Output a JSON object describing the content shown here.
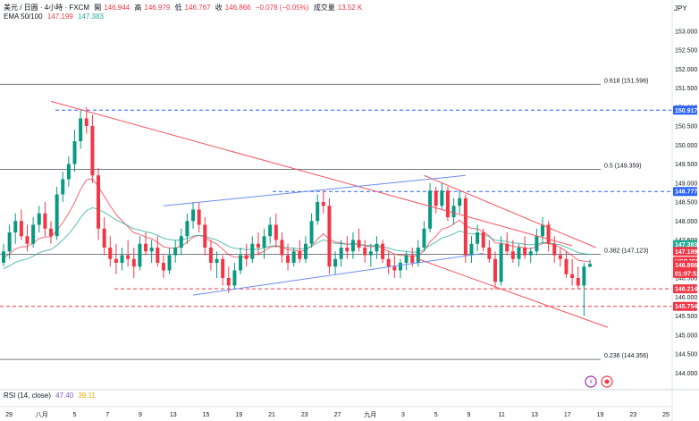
{
  "header": {
    "symbol": "美元 / 日圓 · 4小時 · FXCM",
    "open_label": "開",
    "open": "146.944",
    "high_label": "高",
    "high": "146.979",
    "low_label": "低",
    "low": "146.767",
    "close_label": "收",
    "close": "146.866",
    "change": "−0.078 (−0.05%)",
    "volume_label": "成交量",
    "volume": "13.52 K",
    "ema_label": "EMA 50/100",
    "ema50": "147.199",
    "ema100": "147.383"
  },
  "currency": "JPY",
  "rsi": {
    "label": "RSI (14, close)",
    "v1": "47.40",
    "v2": "39.11"
  },
  "colors": {
    "up": "#089981",
    "down": "#f23645",
    "blue_line": "#2962ff",
    "channel_blue": "#6c8cf0",
    "channel_red": "#f7525f",
    "ema50": "#f23645",
    "ema100": "#22ab94"
  },
  "price_tags": [
    {
      "text": "150.917",
      "price": 150.917,
      "bg": "#2962ff"
    },
    {
      "text": "148.777",
      "price": 148.777,
      "bg": "#2962ff"
    },
    {
      "text": "147.383",
      "price": 147.383,
      "bg": "#22ab94"
    },
    {
      "text": "147.199",
      "price": 147.199,
      "bg": "#f23645"
    },
    {
      "text": "USDJPY",
      "price": 146.94,
      "bg": "#f23645"
    },
    {
      "text": "146.866",
      "price": 146.84,
      "bg": "#f23645"
    },
    {
      "text": "01:07:52",
      "price": 146.62,
      "bg": "#f23645"
    },
    {
      "text": "146.214",
      "price": 146.214,
      "bg": "#f23645"
    },
    {
      "text": "145.754",
      "price": 145.754,
      "bg": "#f23645"
    }
  ],
  "chart_data": {
    "type": "candlestick",
    "title": "",
    "y_ticks": [
      153.0,
      152.5,
      152.0,
      151.5,
      151.0,
      150.5,
      150.0,
      149.5,
      149.0,
      148.5,
      148.0,
      147.5,
      147.0,
      146.5,
      146.0,
      145.5,
      145.0,
      144.5,
      144.0
    ],
    "y_tick_labels": [
      "153.000",
      "152.500",
      "152.000",
      "151.500",
      "151.000",
      "150.500",
      "150.000",
      "149.500",
      "149.000",
      "148.500",
      "148.000",
      "147.500",
      "147.000",
      "146.500",
      "146.000",
      "145.500",
      "145.000",
      "144.500",
      "144.000"
    ],
    "ylim": [
      143.7,
      153.3
    ],
    "x_ticks": [
      "29",
      "八月",
      "5",
      "7",
      "9",
      "13",
      "15",
      "19",
      "21",
      "23",
      "27",
      "九月",
      "3",
      "5",
      "9",
      "11",
      "13",
      "17",
      "19",
      "23",
      "25"
    ],
    "fib_levels": [
      {
        "label": "0.618 (151.596)",
        "price": 151.596
      },
      {
        "label": "0.5 (149.359)",
        "price": 149.359
      },
      {
        "label": "0.382 (147.123)",
        "price": 147.123
      },
      {
        "label": "0.236 (144.356)",
        "price": 144.356
      }
    ],
    "horizontal_dashed": [
      150.917,
      148.777,
      146.214,
      145.754
    ],
    "candles_ohlc": [
      [
        146.9,
        147.4,
        146.8,
        147.2
      ],
      [
        147.2,
        147.9,
        147.0,
        147.7
      ],
      [
        147.7,
        148.2,
        147.4,
        148.0
      ],
      [
        148.0,
        148.3,
        147.5,
        147.6
      ],
      [
        147.6,
        147.9,
        147.2,
        147.4
      ],
      [
        147.4,
        148.1,
        147.3,
        147.9
      ],
      [
        147.9,
        148.4,
        147.7,
        148.2
      ],
      [
        148.2,
        148.5,
        147.6,
        147.8
      ],
      [
        147.8,
        148.0,
        147.4,
        147.6
      ],
      [
        147.6,
        148.9,
        147.5,
        148.7
      ],
      [
        148.7,
        149.3,
        148.5,
        149.1
      ],
      [
        149.1,
        149.7,
        148.9,
        149.5
      ],
      [
        149.5,
        150.4,
        149.3,
        150.1
      ],
      [
        150.1,
        150.9,
        149.9,
        150.7
      ],
      [
        150.7,
        151.0,
        150.3,
        150.5
      ],
      [
        150.5,
        150.8,
        149.0,
        149.2
      ],
      [
        149.2,
        149.4,
        147.5,
        147.8
      ],
      [
        147.8,
        148.1,
        147.1,
        147.3
      ],
      [
        147.3,
        147.6,
        146.8,
        147.0
      ],
      [
        147.0,
        147.4,
        146.6,
        146.9
      ],
      [
        146.9,
        147.3,
        146.7,
        147.1
      ],
      [
        147.1,
        147.5,
        146.8,
        147.0
      ],
      [
        147.0,
        147.3,
        146.5,
        146.8
      ],
      [
        146.8,
        147.6,
        146.7,
        147.4
      ],
      [
        147.4,
        147.7,
        147.1,
        147.2
      ],
      [
        147.2,
        147.5,
        146.9,
        147.3
      ],
      [
        147.3,
        147.6,
        146.8,
        146.9
      ],
      [
        146.9,
        147.1,
        146.5,
        146.7
      ],
      [
        146.7,
        147.3,
        146.6,
        147.1
      ],
      [
        147.1,
        147.5,
        146.9,
        147.3
      ],
      [
        147.3,
        147.8,
        147.1,
        147.6
      ],
      [
        147.6,
        148.2,
        147.4,
        148.0
      ],
      [
        148.0,
        148.5,
        147.8,
        148.3
      ],
      [
        148.3,
        148.5,
        147.7,
        147.9
      ],
      [
        147.9,
        148.1,
        147.1,
        147.3
      ],
      [
        147.3,
        147.5,
        146.7,
        146.9
      ],
      [
        146.9,
        147.2,
        146.5,
        147.0
      ],
      [
        147.0,
        147.1,
        146.3,
        146.5
      ],
      [
        146.5,
        146.8,
        146.1,
        146.3
      ],
      [
        146.3,
        146.9,
        146.2,
        146.7
      ],
      [
        146.7,
        147.3,
        146.6,
        147.1
      ],
      [
        147.1,
        147.4,
        146.8,
        147.0
      ],
      [
        147.0,
        147.6,
        146.9,
        147.4
      ],
      [
        147.4,
        147.7,
        147.1,
        147.3
      ],
      [
        147.3,
        147.8,
        147.0,
        147.6
      ],
      [
        147.6,
        148.1,
        147.4,
        147.9
      ],
      [
        147.9,
        148.2,
        147.3,
        147.5
      ],
      [
        147.5,
        147.7,
        146.9,
        147.1
      ],
      [
        147.1,
        147.4,
        146.7,
        146.9
      ],
      [
        146.9,
        147.3,
        146.8,
        147.2
      ],
      [
        147.2,
        147.5,
        146.9,
        147.0
      ],
      [
        147.0,
        147.6,
        146.9,
        147.4
      ],
      [
        147.4,
        148.2,
        147.3,
        148.0
      ],
      [
        148.0,
        148.7,
        147.9,
        148.5
      ],
      [
        148.5,
        148.8,
        148.2,
        148.4
      ],
      [
        148.4,
        148.6,
        146.6,
        146.8
      ],
      [
        146.8,
        147.2,
        146.6,
        147.0
      ],
      [
        147.0,
        147.5,
        146.8,
        147.3
      ],
      [
        147.3,
        147.6,
        147.0,
        147.2
      ],
      [
        147.2,
        147.7,
        147.0,
        147.5
      ],
      [
        147.5,
        147.8,
        147.2,
        147.3
      ],
      [
        147.3,
        147.5,
        146.9,
        147.1
      ],
      [
        147.1,
        147.4,
        146.8,
        147.2
      ],
      [
        147.2,
        147.6,
        147.0,
        147.4
      ],
      [
        147.4,
        147.5,
        146.9,
        147.0
      ],
      [
        147.0,
        147.2,
        146.6,
        146.8
      ],
      [
        146.8,
        147.1,
        146.5,
        146.7
      ],
      [
        146.7,
        147.0,
        146.5,
        146.9
      ],
      [
        146.9,
        147.2,
        146.7,
        147.1
      ],
      [
        147.1,
        147.3,
        146.8,
        146.9
      ],
      [
        146.9,
        147.5,
        146.8,
        147.3
      ],
      [
        147.3,
        148.0,
        147.2,
        147.8
      ],
      [
        147.8,
        149.0,
        147.7,
        148.8
      ],
      [
        148.8,
        148.9,
        148.2,
        148.4
      ],
      [
        148.4,
        149.0,
        148.3,
        148.8
      ],
      [
        148.8,
        148.9,
        148.0,
        148.1
      ],
      [
        148.1,
        148.6,
        147.9,
        148.4
      ],
      [
        148.4,
        148.8,
        148.2,
        148.6
      ],
      [
        148.6,
        148.7,
        146.9,
        147.1
      ],
      [
        147.1,
        147.6,
        146.9,
        147.4
      ],
      [
        147.4,
        147.9,
        147.2,
        147.7
      ],
      [
        147.7,
        147.8,
        147.2,
        147.3
      ],
      [
        147.3,
        147.5,
        146.9,
        147.0
      ],
      [
        147.0,
        147.2,
        146.2,
        146.4
      ],
      [
        146.4,
        147.6,
        146.3,
        147.4
      ],
      [
        147.4,
        147.7,
        147.1,
        147.2
      ],
      [
        147.2,
        147.5,
        146.9,
        147.0
      ],
      [
        147.0,
        147.4,
        146.8,
        147.3
      ],
      [
        147.3,
        147.6,
        147.0,
        147.1
      ],
      [
        147.1,
        147.3,
        146.9,
        147.2
      ],
      [
        147.2,
        147.8,
        147.1,
        147.6
      ],
      [
        147.6,
        148.1,
        147.4,
        147.9
      ],
      [
        147.9,
        148.0,
        147.2,
        147.4
      ],
      [
        147.4,
        147.6,
        146.9,
        147.1
      ],
      [
        147.1,
        147.3,
        146.8,
        147.0
      ],
      [
        147.0,
        147.2,
        146.5,
        146.6
      ],
      [
        146.6,
        147.0,
        146.3,
        146.5
      ],
      [
        146.5,
        146.8,
        146.2,
        146.3
      ],
      [
        146.3,
        146.9,
        145.5,
        146.8
      ],
      [
        146.8,
        146.98,
        146.77,
        146.87
      ]
    ]
  }
}
